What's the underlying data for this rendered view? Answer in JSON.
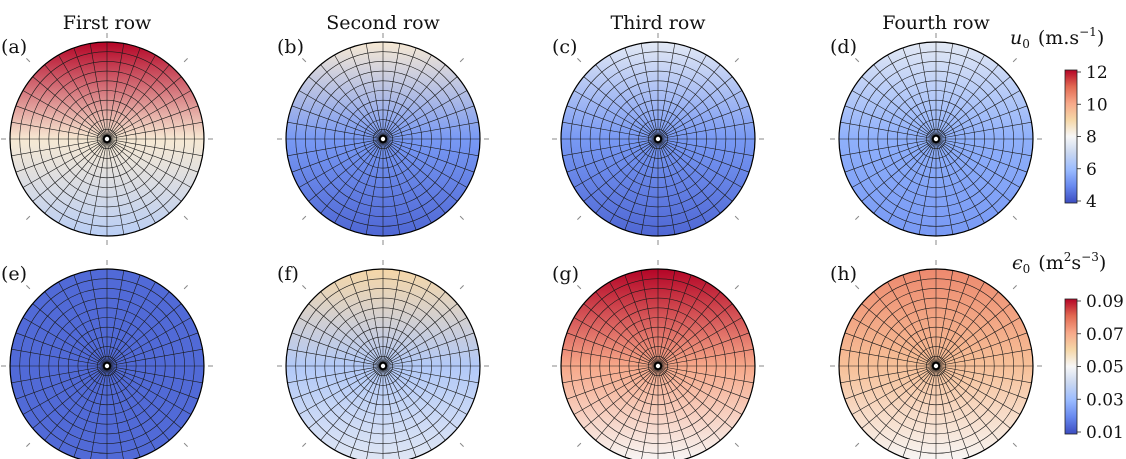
{
  "column_titles": [
    "First row",
    "Second row",
    "Third row",
    "Fourth row"
  ],
  "colorbars": {
    "u0": {
      "label_sym": "u",
      "label_sub": "0",
      "label_unit": "(m.s",
      "label_exp": "−1",
      "label_close": ")",
      "ticks": [
        "12",
        "10",
        "8",
        "6",
        "4"
      ],
      "range": [
        3,
        12
      ]
    },
    "eps0": {
      "label_sym": "ϵ",
      "label_sub": "0",
      "label_unit": "(m",
      "label_exp1": "2",
      "label_mid": "s",
      "label_exp2": "−3",
      "label_close": ")",
      "ticks": [
        "0.09",
        "0.07",
        "0.05",
        "0.03",
        "0.01"
      ],
      "range": [
        0.01,
        0.09
      ]
    }
  },
  "colormap": [
    "#3b4cc0",
    "#6788ee",
    "#9abbff",
    "#c9d7f0",
    "#f7f7f7",
    "#f6d7a7",
    "#f7a889",
    "#e26952",
    "#b40426"
  ],
  "chart_data": [
    {
      "type": "heatmap",
      "panel": "(a)",
      "variable": "u0",
      "row": 1,
      "column": "First row",
      "value_top": 12,
      "value_center": 8,
      "value_bottom": 6
    },
    {
      "type": "heatmap",
      "panel": "(b)",
      "variable": "u0",
      "row": 1,
      "column": "Second row",
      "value_top": 8,
      "value_center": 4.5,
      "value_bottom": 3.5
    },
    {
      "type": "heatmap",
      "panel": "(c)",
      "variable": "u0",
      "row": 1,
      "column": "Third row",
      "value_top": 7,
      "value_center": 4.5,
      "value_bottom": 3.5
    },
    {
      "type": "heatmap",
      "panel": "(d)",
      "variable": "u0",
      "row": 1,
      "column": "Fourth row",
      "value_top": 7,
      "value_center": 5,
      "value_bottom": 4.5
    },
    {
      "type": "heatmap",
      "panel": "(e)",
      "variable": "eps0",
      "row": 2,
      "column": "First row",
      "value_top": 0.015,
      "value_center": 0.015,
      "value_bottom": 0.015
    },
    {
      "type": "heatmap",
      "panel": "(f)",
      "variable": "eps0",
      "row": 2,
      "column": "Second row",
      "value_top": 0.06,
      "value_center": 0.035,
      "value_bottom": 0.045
    },
    {
      "type": "heatmap",
      "panel": "(g)",
      "variable": "eps0",
      "row": 2,
      "column": "Third row",
      "value_top": 0.09,
      "value_center": 0.07,
      "value_bottom": 0.05
    },
    {
      "type": "heatmap",
      "panel": "(h)",
      "variable": "eps0",
      "row": 2,
      "column": "Fourth row",
      "value_top": 0.075,
      "value_center": 0.065,
      "value_bottom": 0.05
    }
  ]
}
